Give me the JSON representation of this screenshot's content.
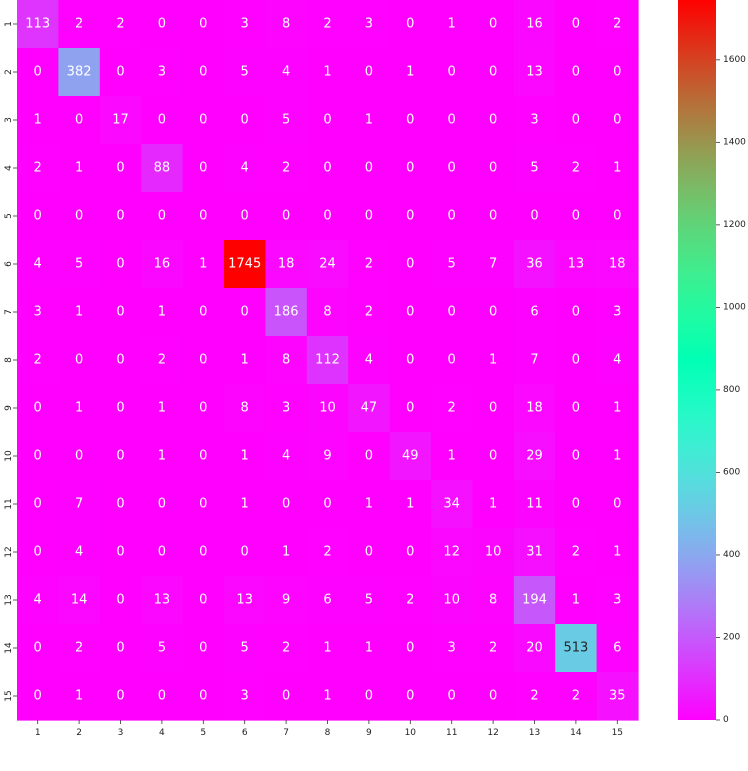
{
  "chart_data": {
    "type": "heatmap",
    "title": "",
    "xlabel": "",
    "ylabel": "",
    "x_categories": [
      "1",
      "2",
      "3",
      "4",
      "5",
      "6",
      "7",
      "8",
      "9",
      "10",
      "11",
      "12",
      "13",
      "14",
      "15"
    ],
    "y_categories": [
      "1",
      "2",
      "3",
      "4",
      "5",
      "6",
      "7",
      "8",
      "9",
      "10",
      "11",
      "12",
      "13",
      "14",
      "15"
    ],
    "values": [
      [
        113,
        2,
        2,
        0,
        0,
        3,
        8,
        2,
        3,
        0,
        1,
        0,
        16,
        0,
        2
      ],
      [
        0,
        382,
        0,
        3,
        0,
        5,
        4,
        1,
        0,
        1,
        0,
        0,
        13,
        0,
        0
      ],
      [
        1,
        0,
        17,
        0,
        0,
        0,
        5,
        0,
        1,
        0,
        0,
        0,
        3,
        0,
        0
      ],
      [
        2,
        1,
        0,
        88,
        0,
        4,
        2,
        0,
        0,
        0,
        0,
        0,
        5,
        2,
        1
      ],
      [
        0,
        0,
        0,
        0,
        0,
        0,
        0,
        0,
        0,
        0,
        0,
        0,
        0,
        0,
        0
      ],
      [
        4,
        5,
        0,
        16,
        1,
        1745,
        18,
        24,
        2,
        0,
        5,
        7,
        36,
        13,
        18
      ],
      [
        3,
        1,
        0,
        1,
        0,
        0,
        186,
        8,
        2,
        0,
        0,
        0,
        6,
        0,
        3
      ],
      [
        2,
        0,
        0,
        2,
        0,
        1,
        8,
        112,
        4,
        0,
        0,
        1,
        7,
        0,
        4
      ],
      [
        0,
        1,
        0,
        1,
        0,
        8,
        3,
        10,
        47,
        0,
        2,
        0,
        18,
        0,
        1
      ],
      [
        0,
        0,
        0,
        1,
        0,
        1,
        4,
        9,
        0,
        49,
        1,
        0,
        29,
        0,
        1
      ],
      [
        0,
        7,
        0,
        0,
        0,
        1,
        0,
        0,
        1,
        1,
        34,
        1,
        11,
        0,
        0
      ],
      [
        0,
        4,
        0,
        0,
        0,
        0,
        1,
        2,
        0,
        0,
        12,
        10,
        31,
        2,
        1
      ],
      [
        4,
        14,
        0,
        13,
        0,
        13,
        9,
        6,
        5,
        2,
        10,
        8,
        194,
        1,
        3
      ],
      [
        0,
        2,
        0,
        5,
        0,
        5,
        2,
        1,
        1,
        0,
        3,
        2,
        20,
        513,
        6
      ],
      [
        0,
        1,
        0,
        0,
        0,
        3,
        0,
        1,
        0,
        0,
        0,
        0,
        2,
        2,
        35
      ]
    ],
    "colormap": "rainbow",
    "vmin": 0,
    "vmax": 1745,
    "colorbar_ticks": [
      0,
      200,
      400,
      600,
      800,
      1000,
      1200,
      1400,
      1600
    ],
    "annot": true,
    "grid": false,
    "legend": "colorbar-right"
  }
}
